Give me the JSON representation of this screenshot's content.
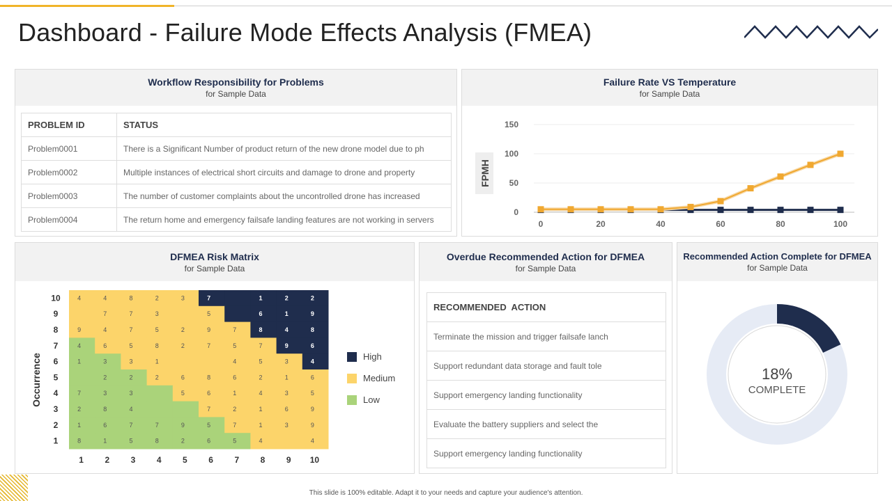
{
  "page": {
    "title": "Dashboard - Failure Mode Effects Analysis (FMEA)",
    "footer": "This slide is 100% editable. Adapt it to your needs and capture your audience's attention.",
    "icons": {
      "title_decoration": "zigzag-icon",
      "corner_decoration": "hatch-pattern-icon"
    }
  },
  "workflow": {
    "title": "Workflow Responsibility for Problems",
    "subtitle": "for Sample Data",
    "columns": [
      "PROBLEM ID",
      "STATUS"
    ],
    "rows": [
      {
        "id": "Problem0001",
        "status": "There is a Significant Number of product return of the new drone model due to ph"
      },
      {
        "id": "Problem0002",
        "status": "Multiple instances of electrical short circuits and damage to drone and property"
      },
      {
        "id": "Problem0003",
        "status": "The number of customer complaints about the uncontrolled drone has increased"
      },
      {
        "id": "Problem0004",
        "status": "The return home and emergency failsafe landing features are not working in servers"
      }
    ]
  },
  "failure_chart": {
    "title": "Failure Rate VS Temperature",
    "subtitle": "for Sample Data"
  },
  "chart_data": {
    "type": "line",
    "title": "Failure Rate VS Temperature",
    "subtitle": "for Sample Data",
    "xlabel": "",
    "ylabel": "FPMH",
    "x_ticks": [
      0,
      20,
      40,
      60,
      80,
      100
    ],
    "y_ticks": [
      0,
      50,
      100,
      150
    ],
    "xlim": [
      0,
      100
    ],
    "ylim": [
      0,
      150
    ],
    "grid": true,
    "x": [
      0,
      10,
      20,
      30,
      40,
      50,
      60,
      70,
      80,
      90,
      100
    ],
    "series": [
      {
        "color": "#f0a830",
        "values": [
          5,
          5,
          5,
          5,
          5,
          9,
          19,
          41,
          61,
          81,
          100
        ]
      },
      {
        "color": "#1f2d4d",
        "values": [
          4,
          4,
          4,
          4,
          4,
          4,
          4,
          4,
          4,
          4,
          4
        ]
      }
    ]
  },
  "risk_matrix": {
    "title": "DFMEA Risk Matrix",
    "subtitle": "for Sample Data",
    "ylabel": "Occurrence",
    "x_ticks": [
      "1",
      "2",
      "3",
      "4",
      "5",
      "6",
      "7",
      "8",
      "9",
      "10"
    ],
    "y_ticks": [
      "10",
      "9",
      "8",
      "7",
      "6",
      "5",
      "4",
      "3",
      "2",
      "1"
    ],
    "levels": [
      [
        "M",
        "M",
        "M",
        "M",
        "M",
        "H",
        "H",
        "H",
        "H",
        "H"
      ],
      [
        "M",
        "M",
        "M",
        "M",
        "M",
        "M",
        "H",
        "H",
        "H",
        "H"
      ],
      [
        "M",
        "M",
        "M",
        "M",
        "M",
        "M",
        "M",
        "H",
        "H",
        "H"
      ],
      [
        "L",
        "M",
        "M",
        "M",
        "M",
        "M",
        "M",
        "M",
        "H",
        "H"
      ],
      [
        "L",
        "L",
        "M",
        "M",
        "M",
        "M",
        "M",
        "M",
        "M",
        "H"
      ],
      [
        "L",
        "L",
        "L",
        "M",
        "M",
        "M",
        "M",
        "M",
        "M",
        "M"
      ],
      [
        "L",
        "L",
        "L",
        "L",
        "M",
        "M",
        "M",
        "M",
        "M",
        "M"
      ],
      [
        "L",
        "L",
        "L",
        "L",
        "L",
        "M",
        "M",
        "M",
        "M",
        "M"
      ],
      [
        "L",
        "L",
        "L",
        "L",
        "L",
        "L",
        "M",
        "M",
        "M",
        "M"
      ],
      [
        "L",
        "L",
        "L",
        "L",
        "L",
        "L",
        "L",
        "M",
        "M",
        "M"
      ]
    ],
    "values": [
      [
        "4",
        "4",
        "8",
        "2",
        "3",
        "7",
        "",
        "1",
        "2",
        "2"
      ],
      [
        "",
        "7",
        "7",
        "3",
        "",
        "5",
        "",
        "6",
        "1",
        "9"
      ],
      [
        "9",
        "4",
        "7",
        "5",
        "2",
        "9",
        "7",
        "8",
        "4",
        "8"
      ],
      [
        "4",
        "6",
        "5",
        "8",
        "2",
        "7",
        "5",
        "7",
        "9",
        "6"
      ],
      [
        "1",
        "3",
        "3",
        "1",
        "",
        "",
        "4",
        "5",
        "3",
        "4"
      ],
      [
        "",
        "2",
        "2",
        "2",
        "6",
        "8",
        "6",
        "2",
        "1",
        "6"
      ],
      [
        "7",
        "3",
        "3",
        "",
        "5",
        "6",
        "1",
        "4",
        "3",
        "5"
      ],
      [
        "2",
        "8",
        "4",
        "",
        "",
        "7",
        "2",
        "1",
        "6",
        "9"
      ],
      [
        "1",
        "6",
        "7",
        "7",
        "9",
        "5",
        "7",
        "1",
        "3",
        "9"
      ],
      [
        "8",
        "1",
        "5",
        "8",
        "2",
        "6",
        "5",
        "4",
        "",
        "4"
      ]
    ],
    "colors": {
      "H": "#1f2d4d",
      "M": "#fcd46a",
      "L": "#aad37a"
    },
    "legend": [
      {
        "label": "High",
        "color": "#1f2d4d"
      },
      {
        "label": "Medium",
        "color": "#fcd46a"
      },
      {
        "label": "Low",
        "color": "#aad37a"
      }
    ]
  },
  "overdue": {
    "title": "Overdue Recommended Action for DFMEA",
    "subtitle": "for Sample Data",
    "header": "RECOMMENDED  ACTION",
    "rows": [
      "Terminate the mission and trigger failsafe lanch",
      "Support redundant data storage and fault tole",
      "Support emergency landing functionality",
      "Evaluate the battery suppliers and select the",
      "Support emergency landing functionality"
    ]
  },
  "complete": {
    "title": "Recommended Action Complete for DFMEA",
    "subtitle": "for Sample Data",
    "percent": 18,
    "percent_label": "18%",
    "status_label": "COMPLETE",
    "fill_color": "#1f2d4d",
    "track_color": "#e6ebf5"
  }
}
